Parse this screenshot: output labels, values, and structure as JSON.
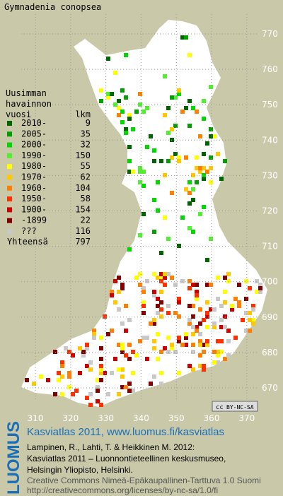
{
  "title": "Gymnadenia conopsea",
  "legend": {
    "header": [
      "Uusimman",
      "havainnon",
      "vuosi"
    ],
    "count_header": "lkm",
    "rows": [
      {
        "label": "2010-",
        "count": 9,
        "color": "#006400"
      },
      {
        "label": "2005-",
        "count": 35,
        "color": "#00a000"
      },
      {
        "label": "2000-",
        "count": 32,
        "color": "#00d800"
      },
      {
        "label": "1990-",
        "count": 150,
        "color": "#50f030"
      },
      {
        "label": "1980-",
        "count": 55,
        "color": "#ffff00"
      },
      {
        "label": "1970-",
        "count": 62,
        "color": "#ffc800"
      },
      {
        "label": "1960-",
        "count": 104,
        "color": "#ff8000"
      },
      {
        "label": "1950-",
        "count": 58,
        "color": "#ff3000"
      },
      {
        "label": "1900-",
        "count": 154,
        "color": "#cc0000"
      },
      {
        "label": "-1899",
        "count": 22,
        "color": "#800000"
      },
      {
        "label": "???",
        "count": 116,
        "color": "#c8c8c8"
      }
    ],
    "total_label": "Yhteensä",
    "total": 797
  },
  "grid": {
    "northing": [
      770,
      760,
      750,
      740,
      730,
      720,
      710,
      700,
      690,
      680,
      670
    ],
    "easting": [
      310,
      320,
      330,
      340,
      350,
      360,
      370
    ]
  },
  "badge": [
    "cc",
    "BY-NC-SA"
  ],
  "footer": {
    "logo": "LUOMUS",
    "title": "Kasviatlas 2011, www.luomus.fi/kasviatlas",
    "citation": [
      "Lampinen, R., Lahti, T. & Heikkinen M. 2012:",
      "Kasviatlas 2011 – Luonnontieteellinen keskusmuseo,",
      "Helsingin Yliopisto, Helsinki."
    ],
    "license": [
      "Creative Commons Nimeä-Epäkaupallinen-Tarttuva 1.0 Suomi",
      "http://creativecommons.org/licenses/by-nc-sa/1.0/fi"
    ]
  }
}
